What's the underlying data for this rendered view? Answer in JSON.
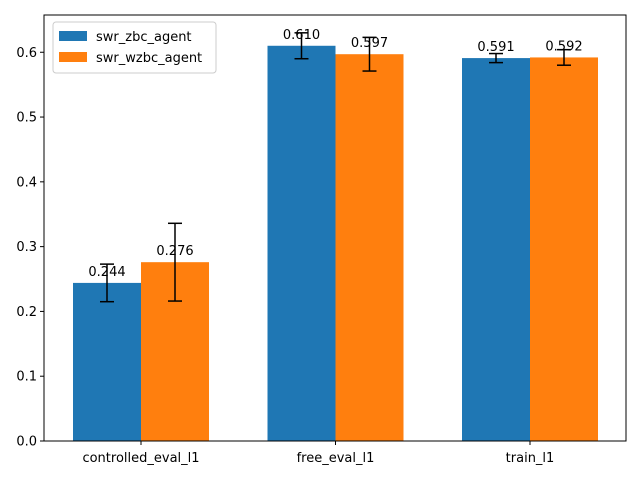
{
  "chart_data": {
    "type": "bar",
    "title": "",
    "xlabel": "",
    "ylabel": "",
    "categories": [
      "controlled_eval_l1",
      "free_eval_l1",
      "train_l1"
    ],
    "series": [
      {
        "name": "swr_zbc_agent",
        "color": "#1f77b4",
        "values": [
          0.244,
          0.61,
          0.591
        ],
        "labels": [
          "0.244",
          "0.610",
          "0.591"
        ],
        "err": [
          0.029,
          0.02,
          0.007
        ]
      },
      {
        "name": "swr_wzbc_agent",
        "color": "#ff7f0e",
        "values": [
          0.276,
          0.597,
          0.592
        ],
        "labels": [
          "0.276",
          "0.597",
          "0.592"
        ],
        "err": [
          0.06,
          0.026,
          0.012
        ]
      }
    ],
    "ylim": [
      0,
      0.6575
    ],
    "yticks": [
      0.0,
      0.1,
      0.2,
      0.3,
      0.4,
      0.5,
      0.6
    ],
    "ytick_labels": [
      "0.0",
      "0.1",
      "0.2",
      "0.3",
      "0.4",
      "0.5",
      "0.6"
    ],
    "legend_position": "top-left",
    "grid": false
  }
}
